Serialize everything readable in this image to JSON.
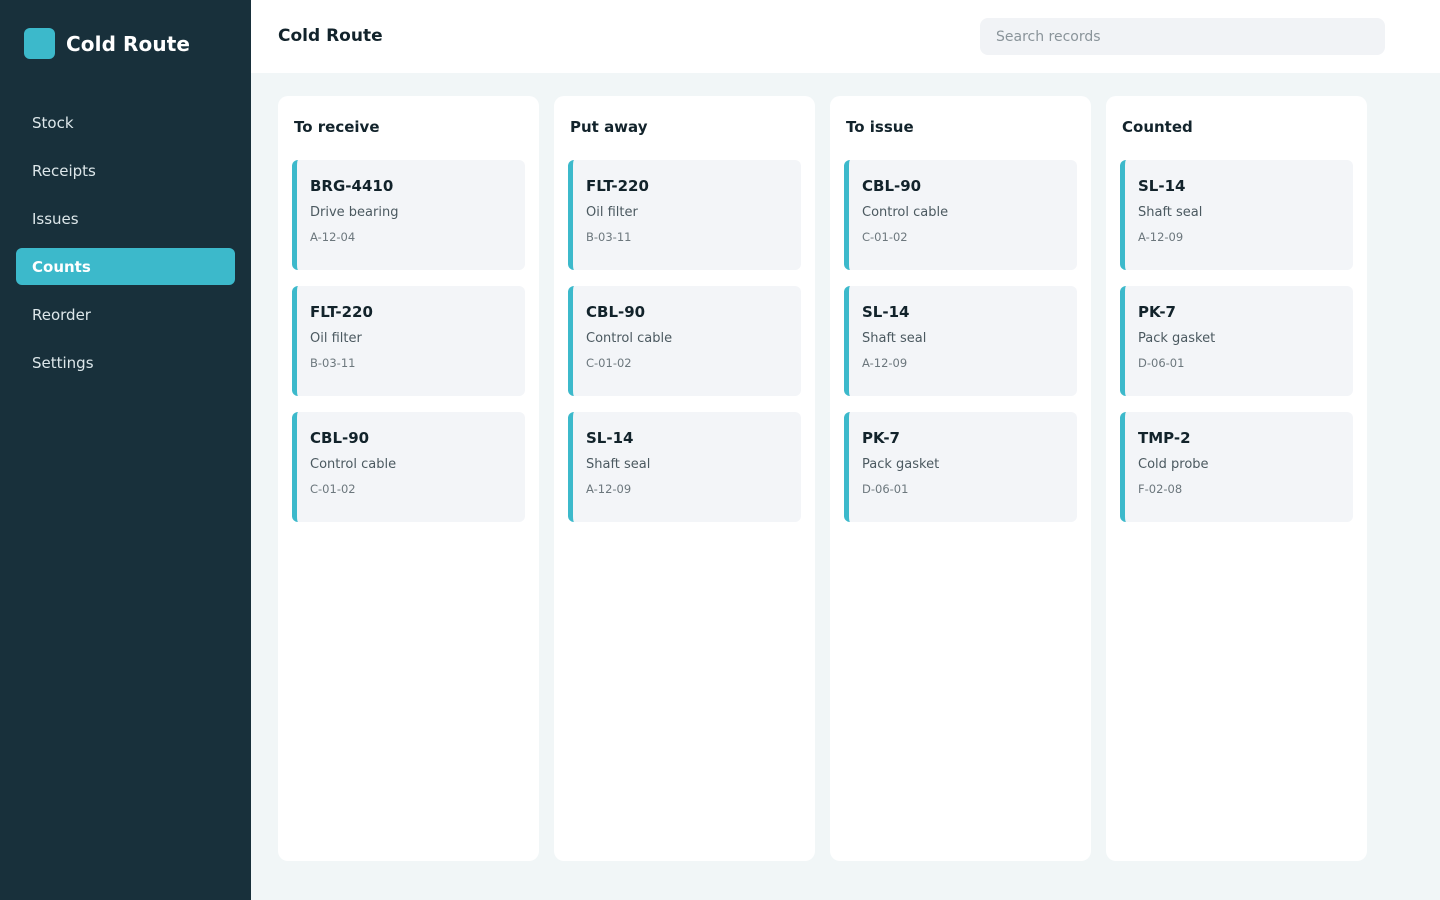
{
  "app": {
    "name": "Cold Route"
  },
  "colors": {
    "sidebar": "#18303b",
    "accent": "#3cb9cb",
    "card": "#f3f5f8",
    "background": "#f1f6f7"
  },
  "nav": {
    "items": [
      {
        "label": "Stock",
        "active": false
      },
      {
        "label": "Receipts",
        "active": false
      },
      {
        "label": "Issues",
        "active": false
      },
      {
        "label": "Counts",
        "active": true
      },
      {
        "label": "Reorder",
        "active": false
      },
      {
        "label": "Settings",
        "active": false
      }
    ]
  },
  "header": {
    "title": "Cold Route"
  },
  "search": {
    "placeholder": "Search records",
    "value": ""
  },
  "board": {
    "columns": [
      {
        "title": "To receive",
        "cards": [
          {
            "code": "BRG-4410",
            "name": "Drive bearing",
            "location": "A-12-04"
          },
          {
            "code": "FLT-220",
            "name": "Oil filter",
            "location": "B-03-11"
          },
          {
            "code": "CBL-90",
            "name": "Control cable",
            "location": "C-01-02"
          }
        ]
      },
      {
        "title": "Put away",
        "cards": [
          {
            "code": "FLT-220",
            "name": "Oil filter",
            "location": "B-03-11"
          },
          {
            "code": "CBL-90",
            "name": "Control cable",
            "location": "C-01-02"
          },
          {
            "code": "SL-14",
            "name": "Shaft seal",
            "location": "A-12-09"
          }
        ]
      },
      {
        "title": "To issue",
        "cards": [
          {
            "code": "CBL-90",
            "name": "Control cable",
            "location": "C-01-02"
          },
          {
            "code": "SL-14",
            "name": "Shaft seal",
            "location": "A-12-09"
          },
          {
            "code": "PK-7",
            "name": "Pack gasket",
            "location": "D-06-01"
          }
        ]
      },
      {
        "title": "Counted",
        "cards": [
          {
            "code": "SL-14",
            "name": "Shaft seal",
            "location": "A-12-09"
          },
          {
            "code": "PK-7",
            "name": "Pack gasket",
            "location": "D-06-01"
          },
          {
            "code": "TMP-2",
            "name": "Cold probe",
            "location": "F-02-08"
          }
        ]
      }
    ]
  }
}
